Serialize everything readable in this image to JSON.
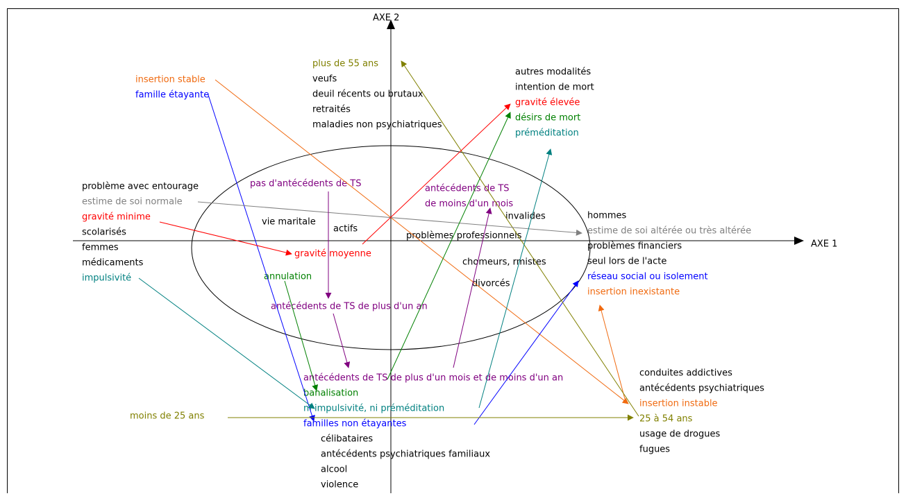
{
  "axes": {
    "horizontal": "AXE 1",
    "vertical": "AXE 2"
  },
  "label_groups": [
    [
      "insertion stable",
      "famille étayante"
    ],
    [
      "plus de 55 ans",
      "veufs",
      "deuil récents ou brutaux",
      "retraités",
      "maladies non psychiatriques"
    ],
    [
      "autres modalités",
      "intention de mort",
      "gravité élevée",
      "désirs de mort",
      "préméditation"
    ],
    [
      "problème avec entourage",
      "estime de soi normale",
      "gravité minime",
      "scolarisés",
      "femmes",
      "médicaments",
      "impulsivité"
    ],
    [
      "pas d'antécédents de TS"
    ],
    [
      "vie maritale"
    ],
    [
      "actifs"
    ],
    [
      "antécédents de TS",
      "de moins d'un mois"
    ],
    [
      "invalides"
    ],
    [
      "problèmes professionnels"
    ],
    [
      "gravité moyenne"
    ],
    [
      "chomeurs, rmistes"
    ],
    [
      "annulation"
    ],
    [
      "divorcés"
    ],
    [
      "antécédents de TS de plus d'un an"
    ],
    [
      "hommes",
      "estime de soi altérée ou très altérée",
      "problèmes financiers",
      "seul lors de l'acte",
      "réseau social ou isolement",
      "insertion inexistante"
    ],
    [
      "antécédents de TS de plus d'un mois et de moins d'un an",
      "banalisation",
      "ni impulsivité, ni préméditation",
      "familles non étayantes",
      "célibataires",
      "antécédents psychiatriques familiaux",
      "alcool",
      "violence"
    ],
    [
      "moins de 25 ans"
    ],
    [
      "conduites addictives",
      "antécédents psychiatriques",
      "insertion instable",
      "25 à 54 ans",
      "usage de drogues",
      "fugues"
    ]
  ]
}
